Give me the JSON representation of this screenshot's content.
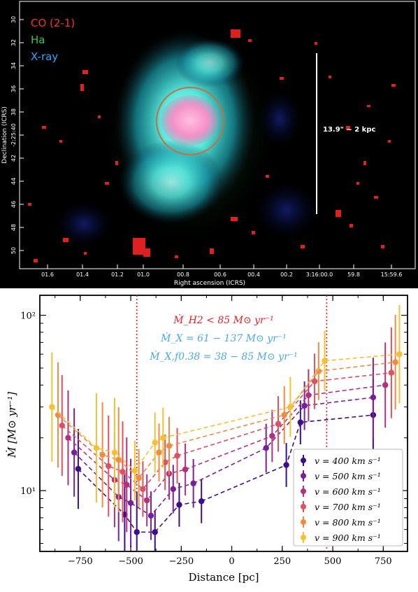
{
  "image_panel": {
    "legend": [
      "CO (2-1)",
      "Ha",
      "X-ray"
    ],
    "legend_colors": [
      "#ff2a2a",
      "#2ecc40",
      "#2aa8ff"
    ],
    "scale_label": "13.9\" ~ 2 kpc",
    "xlabel": "Right ascension (ICRS)",
    "ylabel": "Declination (ICRS)",
    "x_ticks": [
      "01.6",
      "01.4",
      "01.2",
      "01.0",
      "00.8",
      "00.6",
      "00.4",
      "00.2",
      "3:16:00.0",
      "59.8",
      "15:59.6"
    ],
    "y_ticks": [
      "30",
      "32",
      "34",
      "36",
      "38",
      "-2:25:40",
      "42",
      "44",
      "46",
      "48",
      "50"
    ]
  },
  "chart_data": {
    "type": "scatter",
    "xlabel": "Distance [pc]",
    "ylabel": "Ṁ [M⊙ yr⁻¹]",
    "xlim": [
      -950,
      870
    ],
    "ylim": [
      4.5,
      130
    ],
    "yscale": "log",
    "x_ticks": [
      "−750",
      "−500",
      "−250",
      "0",
      "250",
      "500",
      "750"
    ],
    "y_ticks": [
      "10¹",
      "10²"
    ],
    "vlines": [
      -470,
      470
    ],
    "annotations": [
      {
        "text": "Ṁ_H2 < 85 M⊙ yr⁻¹",
        "color": "#e8202a"
      },
      {
        "text": "Ṁ_X = 61 − 137 M⊙ yr⁻¹",
        "color": "#4aa8e8"
      },
      {
        "text": "Ṁ_X,f0.38 = 38 − 85 M⊙ yr⁻¹",
        "color": "#4aa8e8"
      }
    ],
    "legend_position": "lower-right",
    "series": [
      {
        "name": "v = 400 km s⁻¹",
        "color": "#3b0f8c",
        "x": [
          -760,
          -530,
          -470,
          -380,
          -260,
          -150,
          270,
          340,
          700
        ],
        "y": [
          13.3,
          7.3,
          5.8,
          5.8,
          8.3,
          8.7,
          14,
          24.5,
          27
        ],
        "err": [
          0.35,
          0.4,
          0.4,
          0.15,
          0.1,
          0.08,
          0.2,
          0.12,
          0.18
        ]
      },
      {
        "name": "v = 500 km s⁻¹",
        "color": "#7a1f9b",
        "x": [
          -780,
          -560,
          -500,
          -400,
          -290,
          -190,
          170,
          360,
          700
        ],
        "y": [
          16.5,
          9.2,
          8.5,
          7.2,
          10.2,
          11,
          17.5,
          30.5,
          34
        ]
      },
      {
        "name": "v = 600 km s⁻¹",
        "color": "#b4307e",
        "x": [
          -810,
          -580,
          -520,
          -420,
          -310,
          -230,
          200,
          380,
          760
        ],
        "y": [
          20,
          11.5,
          10.8,
          8.8,
          12.5,
          13.2,
          20.5,
          35,
          40
        ]
      },
      {
        "name": "v = 700 km s⁻¹",
        "color": "#df5060",
        "x": [
          -840,
          -610,
          -540,
          -440,
          -330,
          -270,
          230,
          410,
          790
        ],
        "y": [
          23.5,
          13.8,
          12.8,
          10.2,
          14.5,
          15.8,
          24,
          42,
          47
        ]
      },
      {
        "name": "v = 800 km s⁻¹",
        "color": "#f08c42",
        "x": [
          -860,
          -640,
          -560,
          -460,
          -360,
          -310,
          260,
          430,
          810
        ],
        "y": [
          27,
          16,
          15,
          11.8,
          16.5,
          18,
          27,
          48,
          54
        ]
      },
      {
        "name": "v = 900 km s⁻¹",
        "color": "#f6c030",
        "x": [
          -890,
          -670,
          -580,
          -480,
          -380,
          -340,
          290,
          460,
          830
        ],
        "y": [
          30,
          17.5,
          16.5,
          13,
          18.8,
          20,
          30,
          55,
          60
        ]
      }
    ]
  }
}
